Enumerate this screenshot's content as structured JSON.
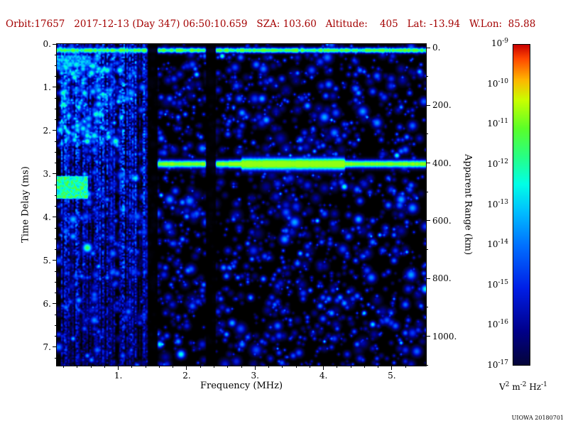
{
  "header": {
    "orbit": "17657",
    "date": "2017-12-13",
    "day_of_year": "347",
    "time_utc": "06:50:10.659",
    "sza_deg": "103.60",
    "altitude_km": "405",
    "lat_deg": "-13.94",
    "wlon_deg": "85.88",
    "display_text": "Orbit:17657   2017-12-13 (Day 347) 06:50:10.659   SZA: 103.60   Altitude:    405   Lat: -13.94   W.Lon:  85.88",
    "color": "#a40000"
  },
  "footer": {
    "credit": "UIOWA 20180701"
  },
  "chart_data": {
    "type": "heatmap",
    "title": "",
    "xlabel": "Frequency (MHz)",
    "ylabel": "Time Delay (ms)",
    "ylabel_right": "Apparent Range (km)",
    "x_range_mhz": [
      0.1,
      5.5
    ],
    "x_tick_values": [
      1,
      2,
      3,
      4,
      5
    ],
    "x_tick_labels": [
      "1.",
      "2.",
      "3.",
      "4.",
      "5."
    ],
    "y_range_ms": [
      0,
      7.43
    ],
    "y_tick_values": [
      0,
      1,
      2,
      3,
      4,
      5,
      6,
      7
    ],
    "y_tick_labels": [
      "0.",
      "1.",
      "2.",
      "3.",
      "4.",
      "5.",
      "6.",
      "7."
    ],
    "right_tick_values_km": [
      0,
      200,
      400,
      600,
      800,
      1000
    ],
    "right_tick_labels": [
      "0.",
      "200.",
      "400.",
      "600.",
      "800.",
      "1000."
    ],
    "range_km_per_ms": 150,
    "range_zero_offset_ms": 0.083,
    "background": "#000000",
    "grid": false,
    "colorbar": {
      "scale": "log",
      "max": "1e-9",
      "min": "1e-17",
      "tick_exponents": [
        -9,
        -10,
        -11,
        -12,
        -13,
        -14,
        -15,
        -16,
        -17
      ],
      "unit_parts": [
        {
          "base": "V",
          "sup": "2"
        },
        {
          "base": " m",
          "sup": "-2"
        },
        {
          "base": " Hz",
          "sup": "-1"
        }
      ]
    },
    "colormap_stops": [
      [
        0.0,
        "#000000"
      ],
      [
        0.06,
        "#050528"
      ],
      [
        0.18,
        "#00008c"
      ],
      [
        0.3,
        "#001ee6"
      ],
      [
        0.42,
        "#006eff"
      ],
      [
        0.52,
        "#00beff"
      ],
      [
        0.6,
        "#00ffe6"
      ],
      [
        0.68,
        "#28ff82"
      ],
      [
        0.76,
        "#5aff28"
      ],
      [
        0.84,
        "#c8ff00"
      ],
      [
        0.9,
        "#ffb400"
      ],
      [
        0.96,
        "#ff4600"
      ],
      [
        1.0,
        "#c80000"
      ]
    ],
    "features": {
      "top_interference_band": {
        "delay_ms": 0.13,
        "intensity_rel": 0.66
      },
      "surface_echo_band": {
        "delay_ms": 2.75,
        "apparent_range_km": 400,
        "freq_start_mhz": 1.56,
        "enhanced_freq_mhz": [
          2.6,
          4.3
        ],
        "intensity_rel": 0.74
      },
      "low_freq_interference": {
        "freq_max_mhz": 1.42,
        "pattern": "vertical-stripes"
      },
      "bright_patch": {
        "freq_mhz": [
          0.1,
          0.55
        ],
        "delay_ms": [
          3.05,
          3.55
        ],
        "intensity_rel": 0.7
      },
      "upper_left_cluster": {
        "freq_mhz": [
          0.12,
          1.05
        ],
        "delay_ms": [
          0.1,
          2.3
        ],
        "count": 260
      },
      "quiet_columns_mhz": [
        [
          1.44,
          1.56
        ],
        [
          2.3,
          2.42
        ]
      ],
      "noise_speckle": {
        "count": 2600,
        "intensity_rel": [
          0.16,
          0.6
        ]
      }
    },
    "seed": 20171213
  }
}
